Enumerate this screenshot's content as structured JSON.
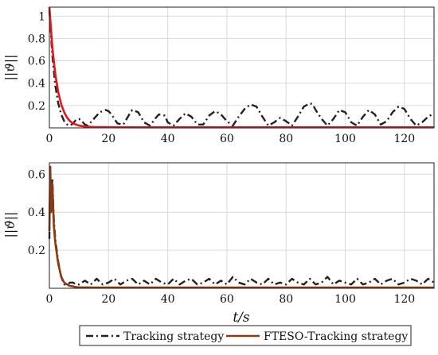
{
  "chart_data": [
    {
      "type": "line",
      "ylabel": "||ϑ||",
      "xlim": [
        0,
        130
      ],
      "ylim": [
        0,
        1.08
      ],
      "xticks": [
        0,
        20,
        40,
        60,
        80,
        100,
        120
      ],
      "yticks": [
        0.2,
        0.4,
        0.6,
        0.8,
        1
      ],
      "ytick_labels": [
        "0.2",
        "0.4",
        "0.6",
        "0.8",
        "1"
      ],
      "grid": true,
      "series": [
        {
          "name": "Tracking strategy",
          "color": "#222222",
          "dash": "dashdot",
          "x": [
            0,
            1,
            2,
            3,
            4,
            5,
            6,
            7,
            8,
            9,
            10,
            11,
            12,
            13,
            15,
            17,
            19,
            20,
            21,
            23,
            25,
            27,
            28,
            30,
            32,
            34,
            36,
            37,
            39,
            40,
            42,
            44,
            46,
            48,
            50,
            52,
            54,
            56,
            58,
            60,
            62,
            64,
            66,
            68,
            70,
            72,
            74,
            76,
            78,
            80,
            82,
            84,
            86,
            88,
            89,
            90,
            92,
            94,
            96,
            98,
            100,
            102,
            104,
            106,
            108,
            110,
            112,
            114,
            116,
            118,
            120,
            122,
            124,
            126,
            128,
            130
          ],
          "y": [
            1.05,
            0.65,
            0.38,
            0.22,
            0.12,
            0.06,
            0.03,
            0.02,
            0.04,
            0.07,
            0.08,
            0.06,
            0.03,
            0.02,
            0.08,
            0.14,
            0.16,
            0.15,
            0.12,
            0.04,
            0.03,
            0.12,
            0.16,
            0.14,
            0.05,
            0.02,
            0.09,
            0.12,
            0.11,
            0.05,
            0.02,
            0.08,
            0.13,
            0.1,
            0.03,
            0.03,
            0.11,
            0.15,
            0.12,
            0.06,
            0.02,
            0.1,
            0.17,
            0.21,
            0.19,
            0.1,
            0.02,
            0.05,
            0.09,
            0.06,
            0.02,
            0.1,
            0.19,
            0.22,
            0.21,
            0.16,
            0.08,
            0.02,
            0.08,
            0.16,
            0.14,
            0.05,
            0.02,
            0.1,
            0.16,
            0.12,
            0.03,
            0.06,
            0.14,
            0.19,
            0.17,
            0.08,
            0.02,
            0.05,
            0.1,
            0.13
          ]
        },
        {
          "name": "FTESO-Tracking strategy",
          "color": "#e8141c",
          "dash": "solid",
          "x": [
            0,
            0.5,
            1,
            2,
            3,
            4,
            5,
            6,
            7,
            8,
            9,
            10,
            12,
            15,
            20,
            30,
            40,
            50,
            60,
            70,
            80,
            90,
            100,
            110,
            120,
            130
          ],
          "y": [
            1.08,
            0.9,
            0.72,
            0.48,
            0.32,
            0.21,
            0.14,
            0.09,
            0.06,
            0.04,
            0.03,
            0.02,
            0.012,
            0.008,
            0.006,
            0.005,
            0.005,
            0.005,
            0.005,
            0.005,
            0.005,
            0.005,
            0.005,
            0.005,
            0.005,
            0.005
          ]
        }
      ]
    },
    {
      "type": "line",
      "ylabel": "||ϑ̇||",
      "xlabel": "t/s",
      "xlim": [
        0,
        130
      ],
      "ylim": [
        0,
        0.66
      ],
      "xticks": [
        0,
        20,
        40,
        60,
        80,
        100,
        120
      ],
      "yticks": [
        0.2,
        0.4,
        0.6
      ],
      "ytick_labels": [
        "0.2",
        "0.4",
        "0.6"
      ],
      "grid": true,
      "series": [
        {
          "name": "Tracking strategy",
          "color": "#222222",
          "dash": "dashdot",
          "x": [
            0,
            0.3,
            0.6,
            1,
            1.5,
            2,
            3,
            4,
            5,
            6,
            7,
            8,
            9,
            10,
            12,
            14,
            16,
            18,
            20,
            22,
            24,
            26,
            28,
            30,
            32,
            34,
            36,
            38,
            40,
            42,
            44,
            46,
            48,
            50,
            52,
            54,
            56,
            58,
            60,
            62,
            64,
            66,
            68,
            70,
            72,
            74,
            76,
            78,
            80,
            82,
            84,
            86,
            88,
            90,
            92,
            94,
            96,
            98,
            100,
            102,
            104,
            106,
            108,
            110,
            112,
            114,
            116,
            118,
            120,
            122,
            124,
            126,
            128,
            130
          ],
          "y": [
            0.26,
            0.62,
            0.44,
            0.58,
            0.36,
            0.26,
            0.14,
            0.06,
            0.02,
            0.02,
            0.03,
            0.03,
            0.02,
            0.02,
            0.04,
            0.02,
            0.05,
            0.02,
            0.03,
            0.05,
            0.02,
            0.04,
            0.05,
            0.02,
            0.04,
            0.02,
            0.05,
            0.03,
            0.02,
            0.05,
            0.02,
            0.04,
            0.05,
            0.02,
            0.03,
            0.05,
            0.02,
            0.04,
            0.02,
            0.06,
            0.03,
            0.02,
            0.05,
            0.03,
            0.02,
            0.05,
            0.02,
            0.03,
            0.02,
            0.05,
            0.03,
            0.02,
            0.05,
            0.02,
            0.03,
            0.06,
            0.02,
            0.04,
            0.03,
            0.02,
            0.05,
            0.02,
            0.03,
            0.05,
            0.02,
            0.04,
            0.05,
            0.02,
            0.03,
            0.05,
            0.04,
            0.02,
            0.05,
            0.03
          ]
        },
        {
          "name": "FTESO-Tracking strategy",
          "color": "#8b3a12",
          "dash": "solid",
          "x": [
            0,
            0.3,
            0.6,
            1,
            1.5,
            2,
            3,
            4,
            5,
            6,
            7,
            8,
            9,
            10,
            15,
            20,
            30,
            40,
            50,
            60,
            70,
            80,
            90,
            100,
            110,
            120,
            130
          ],
          "y": [
            0.3,
            0.64,
            0.4,
            0.55,
            0.33,
            0.24,
            0.13,
            0.06,
            0.03,
            0.02,
            0.012,
            0.01,
            0.006,
            0.005,
            0.004,
            0.004,
            0.004,
            0.004,
            0.004,
            0.004,
            0.004,
            0.004,
            0.004,
            0.004,
            0.004,
            0.004,
            0.004
          ]
        }
      ]
    }
  ],
  "legend": {
    "placement": "bottom",
    "entries": [
      "Tracking strategy",
      "FTESO-Tracking strategy"
    ]
  }
}
